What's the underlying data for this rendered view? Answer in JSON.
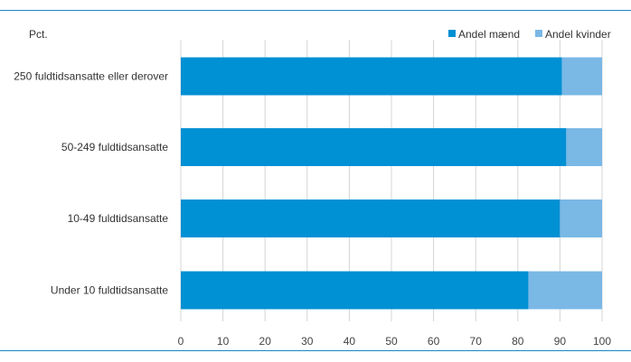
{
  "colors": {
    "rule": "#1a86c4",
    "men": "#0090d4",
    "women": "#7ab8e6",
    "grid": "#d4d4d4"
  },
  "chart_data": {
    "type": "bar",
    "orientation": "horizontal",
    "stacked": true,
    "unit_label": "Pct.",
    "categories": [
      "250 fuldtidsansatte eller derover",
      "50-249 fuldtidsansatte",
      "10-49 fuldtidsansatte",
      "Under 10 fuldtidsansatte"
    ],
    "series": [
      {
        "name": "Andel mænd",
        "color": "#0090d4",
        "values": [
          90.5,
          91.5,
          90,
          82.5
        ]
      },
      {
        "name": "Andel kvinder",
        "color": "#7ab8e6",
        "values": [
          9.5,
          8.5,
          10,
          17.5
        ]
      }
    ],
    "xlim": [
      0,
      100
    ],
    "xticks": [
      0,
      10,
      20,
      30,
      40,
      50,
      60,
      70,
      80,
      90,
      100
    ],
    "grid": true,
    "legend_position": "top-right"
  }
}
